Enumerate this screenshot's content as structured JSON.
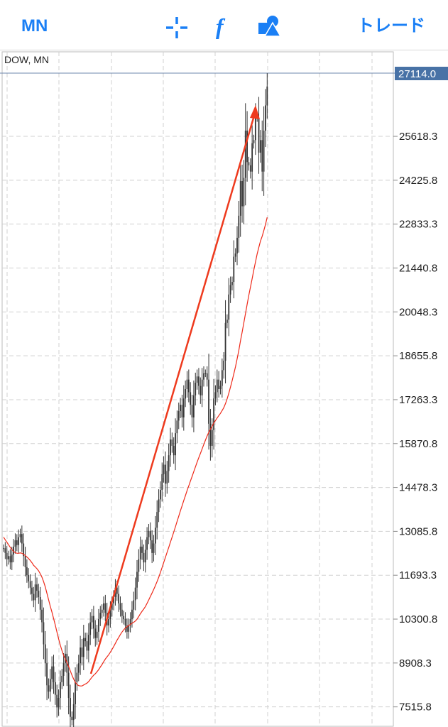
{
  "toolbar": {
    "timeframe": "MN",
    "crosshair_icon": "crosshair-icon",
    "indicator_icon": "function-icon",
    "objects_icon": "shapes-icon",
    "trade_label": "トレード"
  },
  "chart_data": {
    "type": "candlestick",
    "symbol_label": "DOW, MN",
    "current_price": "27114.0",
    "price_labels": [
      "25618.3",
      "24225.8",
      "22833.3",
      "21440.8",
      "20048.3",
      "18655.8",
      "17263.3",
      "15870.8",
      "14478.3",
      "13085.8",
      "11693.3",
      "10300.8",
      "8908.3",
      "7515.8"
    ],
    "price_levels": [
      25618.3,
      24225.8,
      22833.3,
      21440.8,
      20048.3,
      18655.8,
      17263.3,
      15870.8,
      14478.3,
      13085.8,
      11693.3,
      10300.8,
      8908.3,
      7515.8
    ],
    "ylim": [
      6900,
      28300
    ],
    "close_series": [
      12550,
      12400,
      12200,
      12300,
      12100,
      12350,
      12600,
      12800,
      12650,
      12900,
      13000,
      12700,
      12300,
      11950,
      11700,
      11500,
      11300,
      11100,
      10900,
      11400,
      11200,
      11000,
      10600,
      10200,
      9500,
      8900,
      8200,
      8000,
      8400,
      8800,
      8300,
      7900,
      7500,
      7800,
      8300,
      8500,
      8900,
      9200,
      8600,
      7800,
      7200,
      7100,
      7600,
      8300,
      8600,
      8900,
      9400,
      9100,
      9700,
      9600,
      9300,
      9800,
      10200,
      10400,
      10000,
      9700,
      9900,
      10300,
      10500,
      10600,
      10800,
      10500,
      10100,
      10300,
      10600,
      10800,
      11000,
      11300,
      11100,
      10800,
      10600,
      10400,
      10300,
      10100,
      9900,
      10100,
      10300,
      10600,
      10900,
      11300,
      11800,
      12200,
      12600,
      12400,
      12100,
      12500,
      12900,
      13100,
      12800,
      12400,
      12700,
      13200,
      13700,
      14100,
      14400,
      14900,
      15200,
      14600,
      15000,
      15500,
      16000,
      15800,
      15500,
      16200,
      16600,
      16900,
      17100,
      16700,
      17300,
      17600,
      17900,
      17500,
      17100,
      16700,
      17400,
      17800,
      18000,
      17700,
      17400,
      17900,
      18100,
      18100,
      17900,
      16500,
      15800,
      16300,
      17300,
      17500,
      17900,
      17600,
      17700,
      18200,
      18500,
      19700,
      19800,
      20600,
      20900,
      21000,
      21800,
      21900,
      22400,
      23100,
      24200,
      23400,
      24300,
      25800,
      24800,
      24700,
      24500,
      25400,
      25500,
      26200,
      26200,
      25100,
      25500,
      24500,
      25800,
      26600,
      27200
    ],
    "ma_series": [
      12900,
      12820,
      12740,
      12660,
      12580,
      12510,
      12450,
      12410,
      12390,
      12390,
      12400,
      12390,
      12360,
      12320,
      12270,
      12220,
      12160,
      12090,
      12010,
      11960,
      11900,
      11830,
      11740,
      11630,
      11490,
      11320,
      11120,
      10910,
      10710,
      10520,
      10320,
      10110,
      9890,
      9680,
      9480,
      9300,
      9150,
      9030,
      8920,
      8800,
      8660,
      8520,
      8400,
      8300,
      8230,
      8190,
      8180,
      8180,
      8210,
      8240,
      8270,
      8320,
      8390,
      8460,
      8520,
      8570,
      8630,
      8700,
      8780,
      8860,
      8950,
      9030,
      9100,
      9170,
      9250,
      9340,
      9430,
      9530,
      9630,
      9720,
      9810,
      9890,
      9960,
      10020,
      10060,
      10100,
      10130,
      10170,
      10200,
      10240,
      10300,
      10380,
      10470,
      10550,
      10620,
      10700,
      10800,
      10910,
      11020,
      11130,
      11240,
      11360,
      11490,
      11630,
      11780,
      11940,
      12100,
      12260,
      12420,
      12580,
      12740,
      12900,
      13060,
      13230,
      13400,
      13570,
      13740,
      13900,
      14060,
      14220,
      14380,
      14530,
      14680,
      14830,
      14980,
      15130,
      15280,
      15420,
      15560,
      15700,
      15840,
      15980,
      16110,
      16230,
      16330,
      16420,
      16520,
      16600,
      16680,
      16760,
      16830,
      16920,
      17010,
      17140,
      17290,
      17470,
      17660,
      17860,
      18080,
      18310,
      18560,
      18830,
      19130,
      19410,
      19700,
      20000,
      20290,
      20570,
      20840,
      21110,
      21380,
      21640,
      21890,
      22100,
      22300,
      22450,
      22630,
      22820,
      23050
    ]
  }
}
